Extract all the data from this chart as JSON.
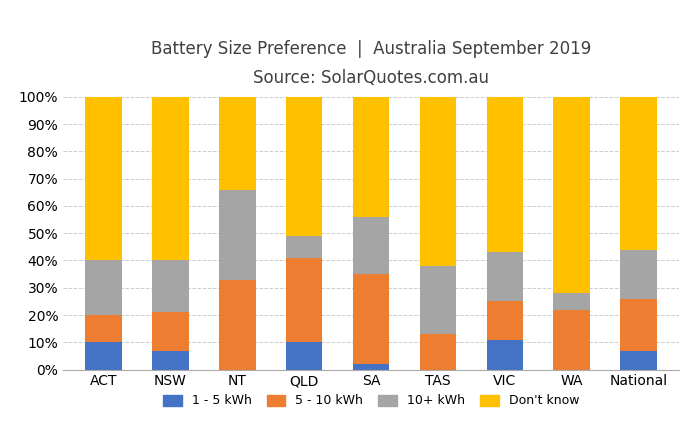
{
  "categories": [
    "ACT",
    "NSW",
    "NT",
    "QLD",
    "SA",
    "TAS",
    "VIC",
    "WA",
    "National"
  ],
  "series": {
    "1 - 5 kWh": [
      10,
      7,
      0,
      10,
      2,
      0,
      11,
      0,
      7
    ],
    "5 - 10 kWh": [
      10,
      14,
      33,
      31,
      33,
      13,
      14,
      22,
      19
    ],
    "10+ kWh": [
      20,
      19,
      33,
      8,
      21,
      25,
      18,
      6,
      18
    ],
    "Don't know": [
      60,
      60,
      34,
      51,
      44,
      62,
      57,
      72,
      56
    ]
  },
  "colors": {
    "1 - 5 kWh": "#4472C4",
    "5 - 10 kWh": "#ED7D31",
    "10+ kWh": "#A5A5A5",
    "Don't know": "#FFC000"
  },
  "title_line1": "Battery Size Preference  |  Australia September 2019",
  "title_line2": "Source: SolarQuotes.com.au",
  "title_fontsize": 12,
  "subtitle_fontsize": 11,
  "ylim": [
    0,
    100
  ],
  "ytick_labels": [
    "0%",
    "10%",
    "20%",
    "30%",
    "40%",
    "50%",
    "60%",
    "70%",
    "80%",
    "90%",
    "100%"
  ],
  "ytick_values": [
    0,
    10,
    20,
    30,
    40,
    50,
    60,
    70,
    80,
    90,
    100
  ],
  "background_color": "#FFFFFF",
  "bar_width": 0.55,
  "legend_order": [
    "1 - 5 kWh",
    "5 - 10 kWh",
    "10+ kWh",
    "Don't know"
  ]
}
